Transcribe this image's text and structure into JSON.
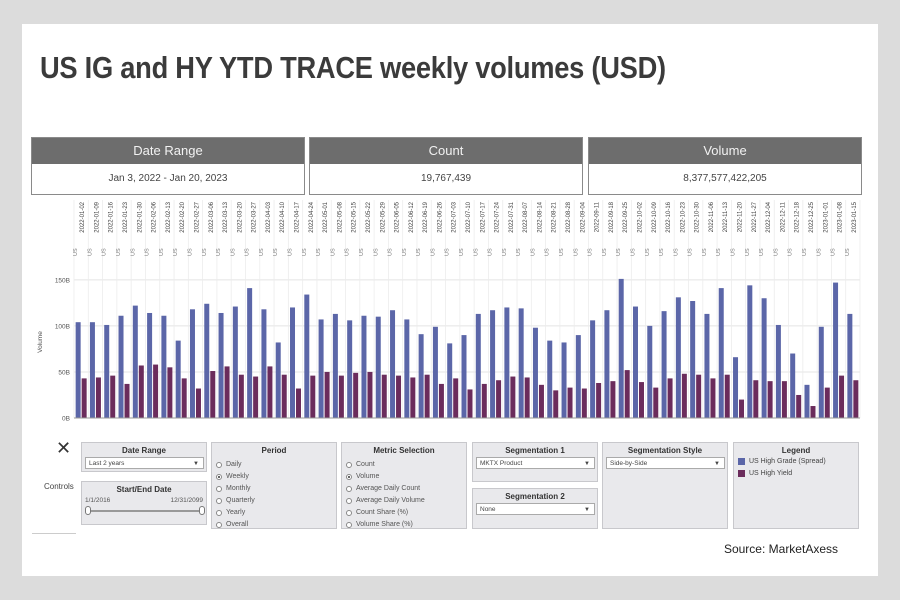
{
  "title": "US IG and HY YTD TRACE weekly volumes (USD)",
  "kpis": {
    "date_range": {
      "label": "Date Range",
      "value": "Jan 3, 2022 - Jan 20, 2023"
    },
    "count": {
      "label": "Count",
      "value": "19,767,439"
    },
    "volume": {
      "label": "Volume",
      "value": "8,377,577,422,205"
    }
  },
  "controls": {
    "close_symbol": "✕",
    "label": "Controls",
    "date_range": {
      "title": "Date Range",
      "value": "Last 2 years"
    },
    "start_end": {
      "title": "Start/End Date",
      "start": "1/1/2016",
      "end": "12/31/2099"
    },
    "period": {
      "title": "Period",
      "options": [
        "Daily",
        "Weekly",
        "Monthly",
        "Quarterly",
        "Yearly",
        "Overall"
      ],
      "selected": "Weekly"
    },
    "metric": {
      "title": "Metric Selection",
      "options": [
        "Count",
        "Volume",
        "Average Daily Count",
        "Average Daily Volume",
        "Count Share (%)",
        "Volume Share (%)"
      ],
      "selected": "Volume"
    },
    "seg1": {
      "title": "Segmentation 1",
      "value": "MKTX Product"
    },
    "seg2": {
      "title": "Segmentation 2",
      "value": "None"
    },
    "seg_style": {
      "title": "Segmentation Style",
      "value": "Side-by-Side"
    },
    "legend": {
      "title": "Legend",
      "items": [
        {
          "label": "US High Grade (Spread)",
          "color": "#5b66a8"
        },
        {
          "label": "US High Yield",
          "color": "#6b2c5c"
        }
      ]
    }
  },
  "source": "Source: MarketAxess",
  "chart_data": {
    "type": "bar",
    "ylabel": "Volume",
    "yticks": [
      "0B",
      "50B",
      "100B",
      "150B"
    ],
    "ylim": [
      0,
      165
    ],
    "row_label": "US",
    "colors": {
      "hg": "#5b66a8",
      "hy": "#6b2c5c"
    },
    "categories": [
      "2022-01-02",
      "2022-01-09",
      "2022-01-16",
      "2022-01-23",
      "2022-01-30",
      "2022-02-06",
      "2022-02-13",
      "2022-02-20",
      "2022-02-27",
      "2022-03-06",
      "2022-03-13",
      "2022-03-20",
      "2022-03-27",
      "2022-04-03",
      "2022-04-10",
      "2022-04-17",
      "2022-04-24",
      "2022-05-01",
      "2022-05-08",
      "2022-05-15",
      "2022-05-22",
      "2022-05-29",
      "2022-06-05",
      "2022-06-12",
      "2022-06-19",
      "2022-06-26",
      "2022-07-03",
      "2022-07-10",
      "2022-07-17",
      "2022-07-24",
      "2022-07-31",
      "2022-08-07",
      "2022-08-14",
      "2022-08-21",
      "2022-08-28",
      "2022-09-04",
      "2022-09-11",
      "2022-09-18",
      "2022-09-25",
      "2022-10-02",
      "2022-10-09",
      "2022-10-16",
      "2022-10-23",
      "2022-10-30",
      "2022-11-06",
      "2022-11-13",
      "2022-11-20",
      "2022-11-27",
      "2022-12-04",
      "2022-12-11",
      "2022-12-18",
      "2022-12-25",
      "2023-01-01",
      "2023-01-08",
      "2023-01-15"
    ],
    "series": [
      {
        "name": "US High Grade (Spread)",
        "values": [
          104,
          104,
          101,
          111,
          122,
          114,
          111,
          84,
          118,
          124,
          114,
          121,
          141,
          118,
          82,
          120,
          134,
          107,
          113,
          106,
          111,
          110,
          117,
          107,
          91,
          99,
          81,
          90,
          113,
          117,
          120,
          119,
          98,
          84,
          82,
          90,
          106,
          117,
          151,
          121,
          100,
          116,
          131,
          127,
          113,
          141,
          66,
          144,
          130,
          101,
          70,
          36,
          99,
          147,
          113
        ]
      },
      {
        "name": "US High Yield",
        "values": [
          43,
          44,
          46,
          37,
          57,
          58,
          55,
          43,
          32,
          51,
          56,
          47,
          45,
          56,
          47,
          32,
          46,
          50,
          46,
          49,
          50,
          47,
          46,
          44,
          47,
          37,
          43,
          31,
          37,
          41,
          45,
          44,
          36,
          30,
          33,
          32,
          38,
          40,
          52,
          39,
          33,
          43,
          48,
          47,
          43,
          47,
          20,
          41,
          40,
          40,
          25,
          13,
          33,
          46,
          41
        ]
      }
    ]
  }
}
